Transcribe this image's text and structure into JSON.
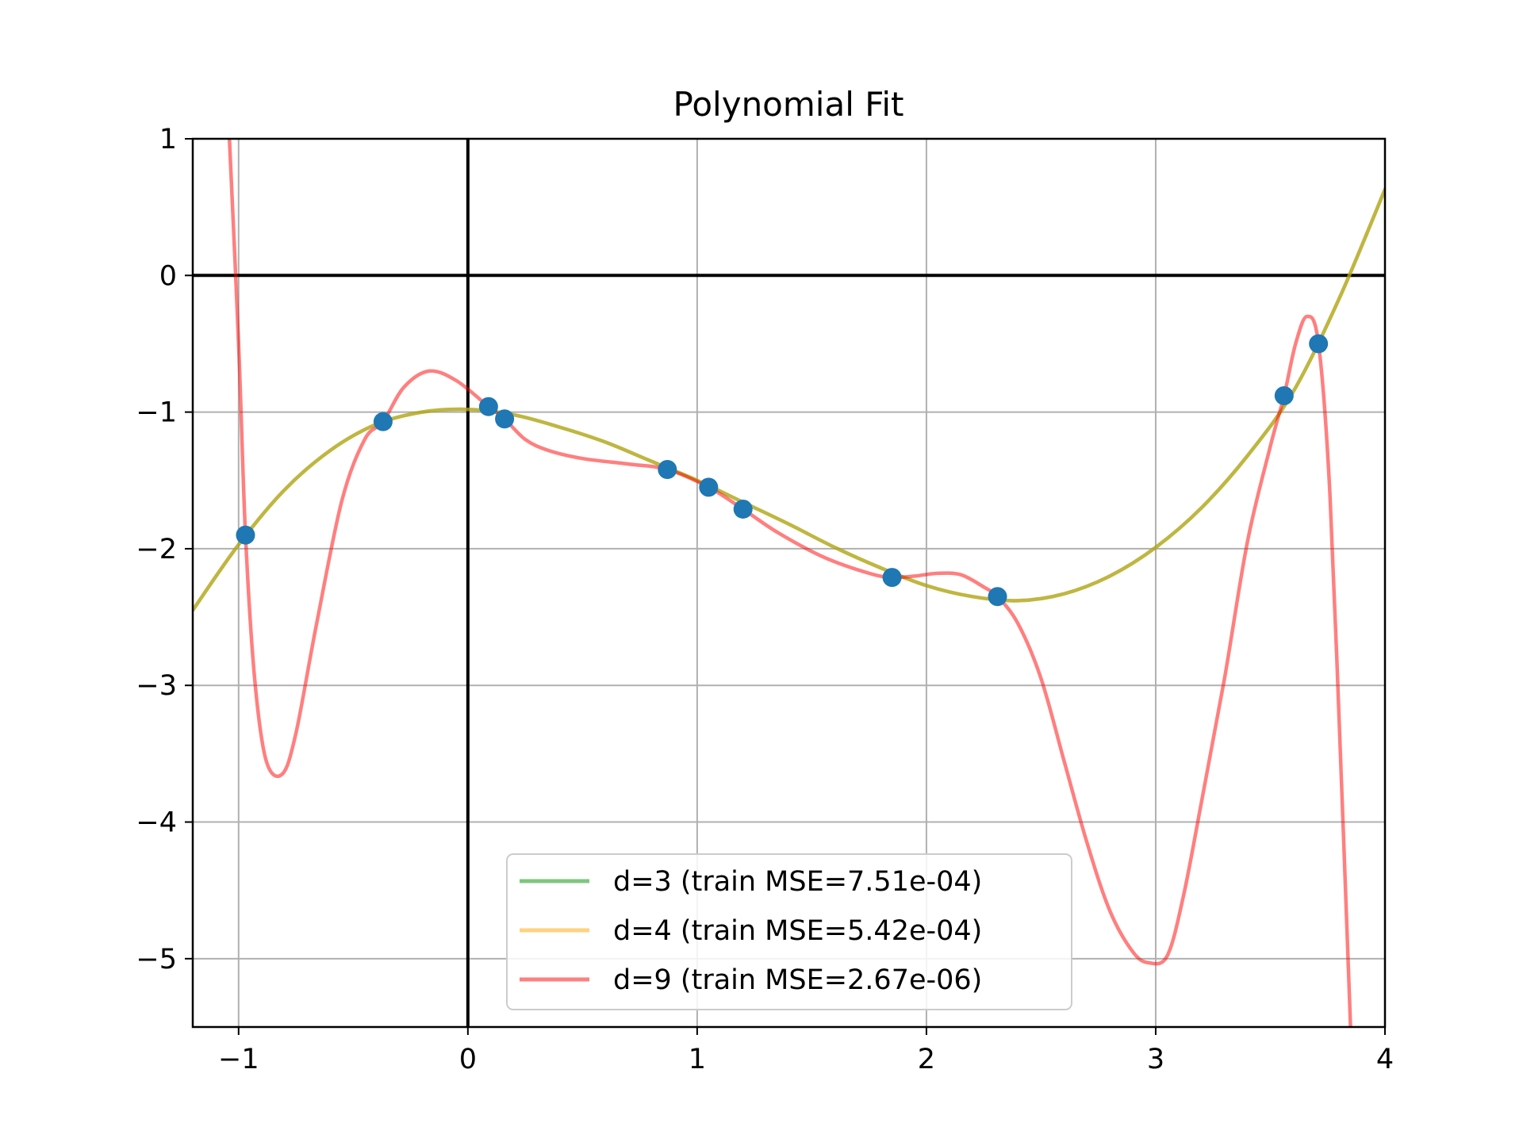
{
  "chart_data": {
    "type": "line",
    "title": "Polynomial Fit",
    "xlabel": "",
    "ylabel": "",
    "xlim": [
      -1.2,
      4.0
    ],
    "ylim": [
      -5.5,
      1.0
    ],
    "x_ticks": [
      -1,
      0,
      1,
      2,
      3,
      4
    ],
    "x_tick_labels": [
      "−1",
      "0",
      "1",
      "2",
      "3",
      "4"
    ],
    "y_ticks": [
      1,
      0,
      -1,
      -2,
      -3,
      -4,
      -5
    ],
    "y_tick_labels": [
      "1",
      "0",
      "−1",
      "−2",
      "−3",
      "−4",
      "−5"
    ],
    "grid": true,
    "reference_lines": {
      "x": 0,
      "y": 0
    },
    "legend_position": "lower-center",
    "points": {
      "color": "#1f77b4",
      "x": [
        -0.97,
        -0.37,
        0.09,
        0.16,
        0.87,
        1.05,
        1.2,
        1.85,
        2.31,
        3.56,
        3.71
      ],
      "y": [
        -1.9,
        -1.07,
        -0.96,
        -1.05,
        -1.42,
        -1.55,
        -1.71,
        -2.21,
        -2.35,
        -0.88,
        -0.5
      ]
    },
    "series": [
      {
        "name": "d=3 (train MSE=7.51e-04)",
        "color": "#2ca02c",
        "opacity": 0.6,
        "x": [
          -1.2,
          -1.0,
          -0.8,
          -0.6,
          -0.4,
          -0.2,
          0.0,
          0.2,
          0.4,
          0.6,
          0.8,
          1.0,
          1.2,
          1.4,
          1.6,
          1.8,
          2.0,
          2.2,
          2.4,
          2.6,
          2.8,
          3.0,
          3.2,
          3.4,
          3.6,
          3.8,
          4.0
        ],
        "y": [
          -2.45,
          -1.97,
          -1.57,
          -1.28,
          -1.09,
          -1.0,
          -0.98,
          -1.02,
          -1.11,
          -1.22,
          -1.36,
          -1.5,
          -1.66,
          -1.82,
          -1.99,
          -2.14,
          -2.27,
          -2.35,
          -2.38,
          -2.33,
          -2.2,
          -1.99,
          -1.7,
          -1.32,
          -0.85,
          -0.17,
          0.63
        ]
      },
      {
        "name": "d=4 (train MSE=5.42e-04)",
        "color": "#ffa500",
        "opacity": 0.5,
        "x": [
          -1.2,
          -1.0,
          -0.8,
          -0.6,
          -0.4,
          -0.2,
          0.0,
          0.2,
          0.4,
          0.6,
          0.8,
          1.0,
          1.2,
          1.4,
          1.6,
          1.8,
          2.0,
          2.2,
          2.4,
          2.6,
          2.8,
          3.0,
          3.2,
          3.4,
          3.6,
          3.8,
          4.0
        ],
        "y": [
          -2.45,
          -1.97,
          -1.57,
          -1.28,
          -1.09,
          -1.0,
          -0.98,
          -1.02,
          -1.11,
          -1.22,
          -1.36,
          -1.5,
          -1.66,
          -1.82,
          -1.99,
          -2.14,
          -2.27,
          -2.35,
          -2.38,
          -2.33,
          -2.2,
          -1.99,
          -1.7,
          -1.32,
          -0.85,
          -0.17,
          0.63
        ]
      },
      {
        "name": "d=9 (train MSE=2.67e-06)",
        "color": "#ff0000",
        "opacity": 0.5,
        "x": [
          -1.04,
          -1.0,
          -0.97,
          -0.93,
          -0.88,
          -0.81,
          -0.75,
          -0.66,
          -0.55,
          -0.45,
          -0.37,
          -0.28,
          -0.17,
          -0.05,
          0.09,
          0.16,
          0.25,
          0.35,
          0.5,
          0.7,
          0.87,
          1.05,
          1.2,
          1.35,
          1.55,
          1.75,
          1.85,
          1.95,
          2.05,
          2.15,
          2.25,
          2.31,
          2.4,
          2.5,
          2.6,
          2.7,
          2.8,
          2.9,
          2.97,
          3.05,
          3.12,
          3.2,
          3.3,
          3.4,
          3.5,
          3.56,
          3.61,
          3.66,
          3.71,
          3.76,
          3.81,
          3.85
        ],
        "y": [
          1.0,
          -0.5,
          -1.9,
          -2.95,
          -3.55,
          -3.65,
          -3.35,
          -2.55,
          -1.65,
          -1.2,
          -1.07,
          -0.82,
          -0.7,
          -0.77,
          -0.96,
          -1.05,
          -1.2,
          -1.28,
          -1.34,
          -1.38,
          -1.42,
          -1.55,
          -1.71,
          -1.88,
          -2.06,
          -2.18,
          -2.21,
          -2.2,
          -2.18,
          -2.19,
          -2.28,
          -2.35,
          -2.55,
          -2.95,
          -3.55,
          -4.15,
          -4.65,
          -4.95,
          -5.03,
          -4.98,
          -4.55,
          -3.85,
          -2.95,
          -1.95,
          -1.25,
          -0.88,
          -0.5,
          -0.3,
          -0.5,
          -1.6,
          -3.7,
          -5.5
        ]
      }
    ]
  }
}
